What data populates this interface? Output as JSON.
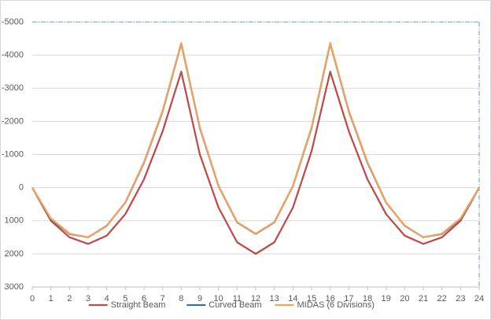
{
  "chart_data": {
    "type": "line",
    "x": [
      0,
      1,
      2,
      3,
      4,
      5,
      6,
      7,
      8,
      9,
      10,
      11,
      12,
      13,
      14,
      15,
      16,
      17,
      18,
      19,
      20,
      21,
      22,
      23,
      24
    ],
    "series": [
      {
        "name": "Straight Beam",
        "color": "#be4b48",
        "values": [
          0,
          1000,
          1500,
          1700,
          1450,
          800,
          -250,
          -1700,
          -3500,
          -1000,
          600,
          1650,
          2000,
          1650,
          600,
          -1100,
          -3500,
          -1700,
          -250,
          800,
          1450,
          1700,
          1500,
          1000,
          0
        ]
      },
      {
        "name": "Curved Beam",
        "color": "#3a6fa0",
        "values": [
          0,
          950,
          1400,
          1500,
          1150,
          450,
          -750,
          -2300,
          -4350,
          -1800,
          -50,
          1050,
          1400,
          1050,
          -50,
          -1800,
          -4350,
          -2300,
          -750,
          450,
          1150,
          1500,
          1400,
          950,
          0
        ]
      },
      {
        "name": "MIDAS (6 Divisions)",
        "color": "#f0a35e",
        "values": [
          0,
          930,
          1390,
          1500,
          1160,
          440,
          -770,
          -2320,
          -4370,
          -1820,
          -60,
          1040,
          1390,
          1040,
          -60,
          -1820,
          -4370,
          -2320,
          -770,
          440,
          1160,
          1500,
          1390,
          930,
          0
        ]
      }
    ],
    "xlim": [
      0,
      24
    ],
    "xticks": [
      0,
      1,
      2,
      3,
      4,
      5,
      6,
      7,
      8,
      9,
      10,
      11,
      12,
      13,
      14,
      15,
      16,
      17,
      18,
      19,
      20,
      21,
      22,
      23,
      24
    ],
    "ylim": [
      -5000,
      3000
    ],
    "y_inverted": true,
    "yticks": [
      -5000,
      -4000,
      -3000,
      -2000,
      -1000,
      0,
      1000,
      2000,
      3000
    ],
    "grid": true,
    "legend": "bottom"
  }
}
